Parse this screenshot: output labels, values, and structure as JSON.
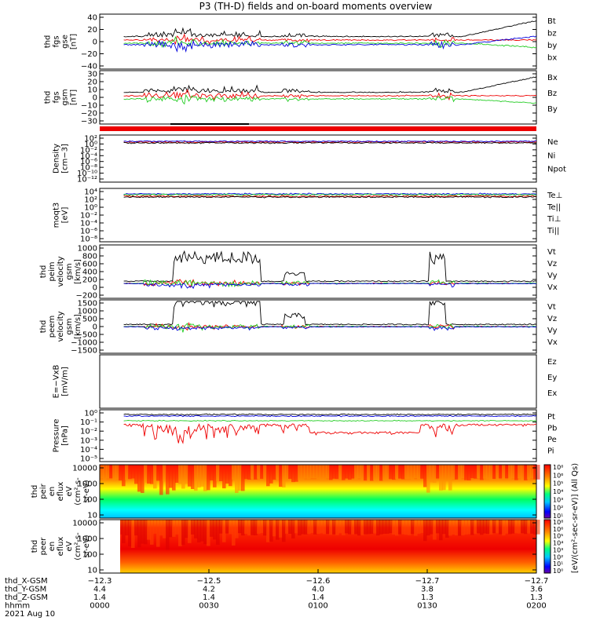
{
  "title": "P3 (TH-D) fields and on-board moments overview",
  "colors": {
    "black": "#000000",
    "red": "#ee0000",
    "green": "#22cc22",
    "blue": "#0000dd"
  },
  "chart_data": [
    {
      "type": "line",
      "panel": "fgs-gse",
      "ylabel": [
        "thd",
        "fgs",
        "gse",
        "[nT]"
      ],
      "yticks": [
        "40",
        "20",
        "0",
        "−20",
        "−40"
      ],
      "ylim": [
        -40,
        40
      ],
      "legend": [
        {
          "label": "Bt",
          "color": "black"
        },
        {
          "label": "bz",
          "color": "red"
        },
        {
          "label": "by",
          "color": "green"
        },
        {
          "label": "bx",
          "color": "blue"
        }
      ]
    },
    {
      "type": "line",
      "panel": "fgs-gsm",
      "ylabel": [
        "thd",
        "fgs",
        "gsm",
        "[nT]"
      ],
      "yticks": [
        "30",
        "20",
        "10",
        "0",
        "−10",
        "−20",
        "−30"
      ],
      "ylim": [
        -35,
        30
      ],
      "legend": [
        {
          "label": "Bx",
          "color": "black"
        },
        {
          "label": "Bz",
          "color": "red"
        },
        {
          "label": "By",
          "color": "green"
        }
      ]
    },
    {
      "type": "line",
      "panel": "density",
      "ylabel": [
        "Density",
        "[cm−3]"
      ],
      "yticks": [
        "10²",
        "10⁰",
        "10⁻²",
        "10⁻⁴",
        "10⁻⁶",
        "10⁻⁸",
        "10⁻¹⁰",
        "10⁻¹²"
      ],
      "log_scale": true,
      "legend": [
        {
          "label": "Ne",
          "color": "red"
        },
        {
          "label": "Ni",
          "color": "black"
        },
        {
          "label": "Npot",
          "color": "blue"
        }
      ]
    },
    {
      "type": "line",
      "panel": "temperature",
      "ylabel": [
        "moqt3",
        "[eV]"
      ],
      "yticks": [
        "10⁴",
        "10²",
        "10⁰",
        "10⁻²",
        "10⁻⁴",
        "10⁻⁶",
        "10⁻⁸"
      ],
      "log_scale": true,
      "legend": [
        {
          "label": "Te⊥",
          "color": "red"
        },
        {
          "label": "Te||",
          "color": "black"
        },
        {
          "label": "Ti⊥",
          "color": "blue"
        },
        {
          "label": "Ti||",
          "color": "green"
        }
      ]
    },
    {
      "type": "line",
      "panel": "peim-velocity",
      "ylabel": [
        "thd",
        "peim",
        "velocity",
        "gsm",
        "[km/s]"
      ],
      "yticks": [
        "1000",
        "800",
        "600",
        "400",
        "200",
        "0",
        "−200"
      ],
      "ylim": [
        -200,
        1000
      ],
      "legend": [
        {
          "label": "Vt",
          "color": "black"
        },
        {
          "label": "Vz",
          "color": "red"
        },
        {
          "label": "Vy",
          "color": "green"
        },
        {
          "label": "Vx",
          "color": "blue"
        }
      ]
    },
    {
      "type": "line",
      "panel": "peem-velocity",
      "ylabel": [
        "thd",
        "peem",
        "velocity",
        "gsm",
        "[km/s]"
      ],
      "yticks": [
        "1500",
        "1000",
        "500",
        "0",
        "−500",
        "−1000",
        "−1500"
      ],
      "ylim": [
        -1500,
        1500
      ],
      "legend": [
        {
          "label": "Vt",
          "color": "black"
        },
        {
          "label": "Vz",
          "color": "red"
        },
        {
          "label": "Vy",
          "color": "green"
        },
        {
          "label": "Vx",
          "color": "blue"
        }
      ]
    },
    {
      "type": "line",
      "panel": "efield",
      "ylabel": [
        "E=−VxB",
        "[mV/m]"
      ],
      "yticks": [],
      "legend": [
        {
          "label": "Ez",
          "color": "red"
        },
        {
          "label": "Ey",
          "color": "green"
        },
        {
          "label": "Ex",
          "color": "blue"
        }
      ]
    },
    {
      "type": "line",
      "panel": "pressure",
      "ylabel": [
        "Pressure",
        "[nPa]"
      ],
      "yticks": [
        "10⁰",
        "10⁻¹",
        "10⁻²",
        "10⁻³",
        "10⁻⁴",
        "10⁻⁵"
      ],
      "log_scale": true,
      "legend": [
        {
          "label": "Pt",
          "color": "black"
        },
        {
          "label": "Pb",
          "color": "red"
        },
        {
          "label": "Pe",
          "color": "green"
        },
        {
          "label": "Pi",
          "color": "blue"
        }
      ]
    },
    {
      "type": "heatmap",
      "panel": "peir-eflux",
      "ylabel": [
        "thd",
        "peir",
        "en",
        "eflux",
        "eV",
        "(cm²-s-",
        "sr-eV)"
      ],
      "yticks": [
        "10000",
        "1000",
        "100",
        "10"
      ],
      "log_scale": true
    },
    {
      "type": "heatmap",
      "panel": "peer-eflux",
      "ylabel": [
        "thd",
        "peer",
        "en",
        "eflux",
        "eV",
        "(cm²-s-",
        "sr-eV)"
      ],
      "yticks": [
        "10000",
        "1000",
        "100",
        "10"
      ],
      "log_scale": true
    }
  ],
  "colorbar": {
    "label": "[eV/(cm²-sec-sr-eV)] (All Qs)",
    "ticks_top": [
      "10⁸",
      "10⁶",
      "10⁵",
      "10⁴",
      "10³",
      "10²",
      "10¹"
    ],
    "ticks_bottom": [
      "10⁸",
      "10⁶",
      "10⁵",
      "10⁴",
      "10³",
      "10²",
      "10¹",
      "10⁰"
    ]
  },
  "xaxis": {
    "row_labels": [
      "thd_X-GSM",
      "thd_Y-GSM",
      "thd_Z-GSM",
      "hhmm",
      "2021 Aug 10"
    ],
    "ticks": [
      {
        "x": "−12.3",
        "y": "4.4",
        "z": "1.4",
        "t": "0000"
      },
      {
        "x": "−12.5",
        "y": "4.2",
        "z": "1.4",
        "t": "0030"
      },
      {
        "x": "−12.6",
        "y": "4.0",
        "z": "1.4",
        "t": "0100"
      },
      {
        "x": "−12.7",
        "y": "3.8",
        "z": "1.3",
        "t": "0130"
      },
      {
        "x": "−12.7",
        "y": "3.6",
        "z": "1.3",
        "t": "0200"
      }
    ]
  }
}
